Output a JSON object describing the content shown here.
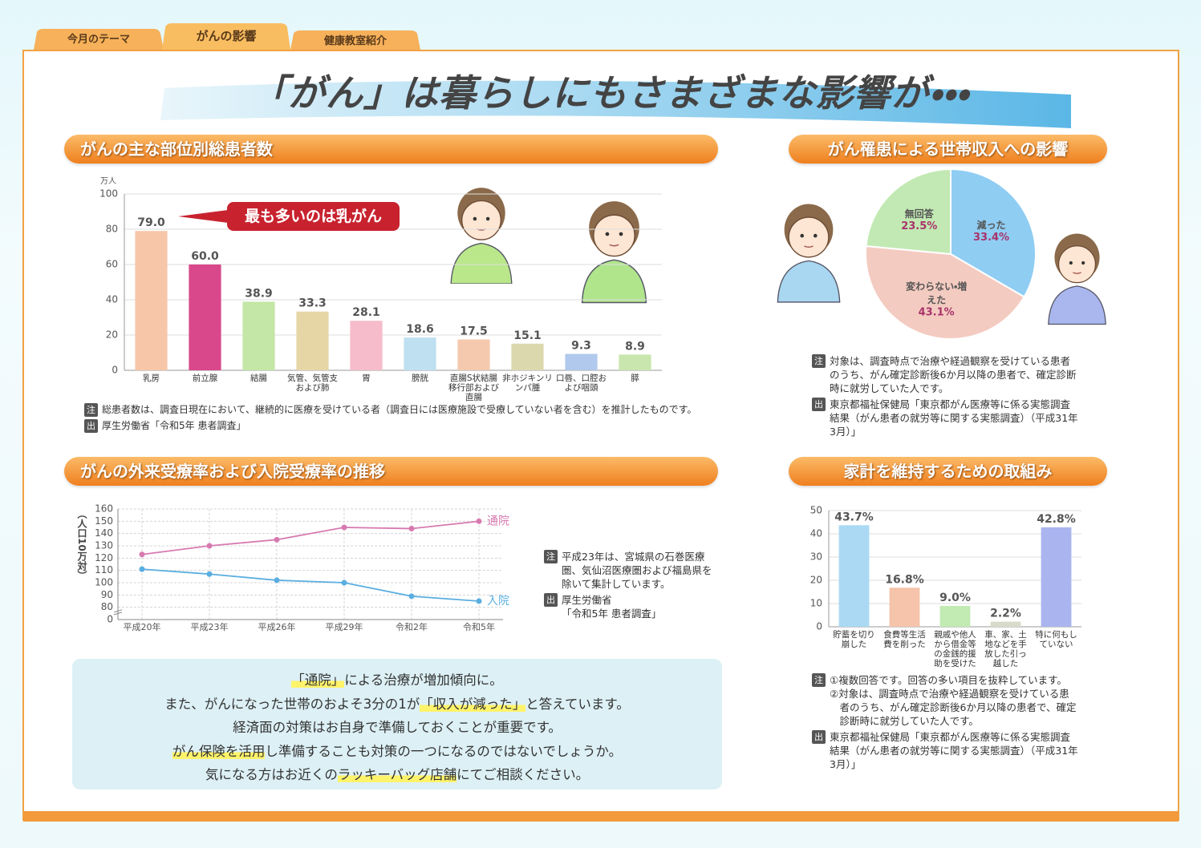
{
  "tabs": [
    "今月のテーマ",
    "がんの影響",
    "健康教室紹介"
  ],
  "title": "「がん」は暮らしにもさまざまな影響が・・・",
  "chart_data": [
    {
      "type": "bar",
      "title": "がんの主な部位別総患者数",
      "unit": "万人",
      "categories": [
        "乳房",
        "前立腺",
        "結腸",
        "気管、気管支および肺",
        "胃",
        "膀胱",
        "直腸S状結腸移行部および直腸",
        "非ホジキンリンパ腫",
        "口唇、口腔および咽頭",
        "膵"
      ],
      "values": [
        79.0,
        60.0,
        38.9,
        33.3,
        28.1,
        18.6,
        17.5,
        15.1,
        9.3,
        8.9
      ],
      "value_labels": [
        "79.0",
        "60.0",
        "38.9",
        "33.3",
        "28.1",
        "18.6",
        "17.5",
        "15.1",
        "9.3",
        "8.9"
      ],
      "colors": [
        "#f7c6a8",
        "#d9488a",
        "#c4e6a6",
        "#e6d6a6",
        "#f6bccb",
        "#bfe0f1",
        "#f5c9ad",
        "#dcd8ae",
        "#b0c9ec",
        "#c8e6ad"
      ],
      "value_label_color": "#8e4a5e",
      "ylim": [
        0,
        100
      ],
      "yticks": [
        0,
        20,
        40,
        60,
        80,
        100
      ],
      "grid": true,
      "annotation": "最も多いのは乳がん",
      "notes": [
        {
          "mark": "注",
          "lines": [
            "総患者数は、調査日現在において、継続的に医療を受けている者（調査日には医療施設で受療していない者を含む）を推計したものです。"
          ]
        },
        {
          "mark": "出",
          "lines": [
            "厚生労働省「令和5年 患者調査」"
          ]
        }
      ]
    },
    {
      "type": "pie",
      "title": "がん罹患による世帯収入への影響",
      "categories": [
        "減った",
        "変わらない・増えた",
        "無回答"
      ],
      "values": [
        33.4,
        43.1,
        23.5
      ],
      "value_labels": [
        "33.4%",
        "43.1%",
        "23.5%"
      ],
      "colors": [
        "#8fcdf3",
        "#f4cbc1",
        "#c2e9b3"
      ],
      "notes": [
        {
          "mark": "注",
          "lines": [
            "対象は、調査時点で治療や経過観察を受けている患者",
            "のうち、がん確定診断後6か月以降の患者で、確定診断",
            "時に就労していた人です。"
          ]
        },
        {
          "mark": "出",
          "lines": [
            "東京都福祉保健局「東京都がん医療等に係る実態調査",
            "結果（がん患者の就労等に関する実態調査）（平成31年",
            "3月）」"
          ]
        }
      ]
    },
    {
      "type": "line",
      "title": "がんの外来受療率および入院受療率の推移",
      "y_label": "（人口10万対）",
      "categories": [
        "平成20年",
        "平成23年",
        "平成26年",
        "平成29年",
        "令和2年",
        "令和5年"
      ],
      "series": [
        {
          "name": "通院",
          "color": "#d77ab0",
          "values": [
            123,
            130,
            135,
            145,
            144,
            150
          ]
        },
        {
          "name": "入院",
          "color": "#5aaee0",
          "values": [
            111,
            107,
            102,
            100,
            89,
            85
          ]
        }
      ],
      "ylim": [
        0,
        160
      ],
      "yticks": [
        0,
        80,
        90,
        100,
        110,
        120,
        130,
        140,
        150,
        160
      ],
      "y_break": true,
      "grid": true,
      "notes": [
        {
          "mark": "注",
          "lines": [
            "平成23年は、宮城県の石巻医療",
            "圏、気仙沼医療圏および福島県を",
            "除いて集計しています。"
          ]
        },
        {
          "mark": "出",
          "lines": [
            "厚生労働省",
            "「令和5年 患者調査」"
          ]
        }
      ]
    },
    {
      "type": "bar",
      "title": "家計を維持するための取組み",
      "categories": [
        "貯蓄を切り崩した",
        "食費等生活費を削った",
        "親戚や他人から借金等の金銭的援助を受けた",
        "車、家、土地などを手放した引っ越した",
        "特に何もしていない"
      ],
      "values": [
        43.7,
        16.8,
        9.0,
        2.2,
        42.8
      ],
      "value_labels": [
        "43.7%",
        "16.8%",
        "9.0%",
        "2.2%",
        "42.8%"
      ],
      "colors": [
        "#abd9f3",
        "#f5c4aa",
        "#c2eab3",
        "#dadacb",
        "#aab5ef"
      ],
      "value_label_color": "#a8336a",
      "ylim": [
        0,
        50
      ],
      "yticks": [
        0,
        10,
        20,
        30,
        40,
        50
      ],
      "grid": true,
      "notes": [
        {
          "mark": "注",
          "lines": [
            "①複数回答です。回答の多い項目を抜粋しています。",
            "②対象は、調査時点で治療や経過観察を受けている患",
            "　者のうち、がん確定診断後6か月以降の患者で、確定",
            "　診断時に就労していた人です。"
          ]
        },
        {
          "mark": "出",
          "lines": [
            "東京都福祉保健局「東京都がん医療等に係る実態調査",
            "結果（がん患者の就労等に関する実態調査）（平成31年",
            "3月）」"
          ]
        }
      ]
    }
  ],
  "message": {
    "lines": [
      [
        "「通院」",
        "による治療が増加傾向に。"
      ],
      [
        "また、がんになった世帯のおよそ3分の1が",
        "「収入が減った」",
        "と答えています。"
      ],
      [
        "経済面の対策はお自身で準備しておくことが重要です。"
      ],
      [
        "がん保険を活用",
        "し準備することも対策の一つになるのではないでしょうか。"
      ],
      [
        "気になる方はお近くの",
        "ラッキーバッグ店舗",
        "にてご相談ください。"
      ]
    ]
  }
}
